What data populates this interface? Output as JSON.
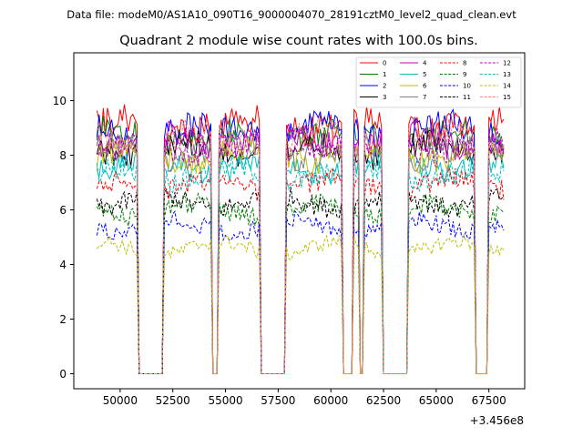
{
  "chart_data": {
    "type": "line",
    "suptitle": "Data file: modeM0/AS1A10_090T16_9000004070_28191cztM0_level2_quad_clean.evt",
    "title": "Quadrant 2 module wise count rates with 100.0s bins.",
    "xlabel": "",
    "ylabel": "",
    "x_offset_label": "+3.456e8",
    "x_tick_values": [
      50000,
      52500,
      55000,
      57500,
      60000,
      62500,
      65000,
      67500
    ],
    "x_tick_labels": [
      "50000",
      "52500",
      "55000",
      "57500",
      "60000",
      "62500",
      "65000",
      "67500"
    ],
    "y_tick_values": [
      0,
      2,
      4,
      6,
      8,
      10
    ],
    "y_tick_labels": [
      "0",
      "2",
      "4",
      "6",
      "8",
      "10"
    ],
    "xlim": [
      47800,
      69200
    ],
    "ylim": [
      -0.55,
      11.75
    ],
    "legend_position": "top-right",
    "bin_seconds": 100,
    "time_range": [
      48900,
      68200
    ],
    "gaps": [
      [
        50800,
        52100
      ],
      [
        54300,
        54700
      ],
      [
        56600,
        57900
      ],
      [
        60500,
        61100
      ],
      [
        61300,
        61600
      ],
      [
        62400,
        63700
      ],
      [
        66800,
        67500
      ]
    ],
    "series": [
      {
        "name": "0",
        "color": "#ff0000",
        "dashed": false,
        "mean": 9.1
      },
      {
        "name": "1",
        "color": "#008000",
        "dashed": false,
        "mean": 8.7
      },
      {
        "name": "2",
        "color": "#0000ff",
        "dashed": false,
        "mean": 8.9
      },
      {
        "name": "3",
        "color": "#000000",
        "dashed": false,
        "mean": 8.2
      },
      {
        "name": "4",
        "color": "#bf00bf",
        "dashed": false,
        "mean": 8.5
      },
      {
        "name": "5",
        "color": "#00bfbf",
        "dashed": false,
        "mean": 7.6
      },
      {
        "name": "6",
        "color": "#bfbf00",
        "dashed": false,
        "mean": 8.0
      },
      {
        "name": "7",
        "color": "#808080",
        "dashed": false,
        "mean": 8.1
      },
      {
        "name": "8",
        "color": "#ff0000",
        "dashed": true,
        "mean": 6.9
      },
      {
        "name": "9",
        "color": "#008000",
        "dashed": true,
        "mean": 6.0
      },
      {
        "name": "10",
        "color": "#0000ff",
        "dashed": true,
        "mean": 5.4
      },
      {
        "name": "11",
        "color": "#000000",
        "dashed": true,
        "mean": 6.3
      },
      {
        "name": "12",
        "color": "#bf00bf",
        "dashed": true,
        "mean": 8.3
      },
      {
        "name": "13",
        "color": "#00bfbf",
        "dashed": true,
        "mean": 7.3
      },
      {
        "name": "14",
        "color": "#bfbf00",
        "dashed": true,
        "mean": 4.6
      },
      {
        "name": "15",
        "color": "#fa8072",
        "dashed": true,
        "mean": 8.6
      }
    ]
  }
}
